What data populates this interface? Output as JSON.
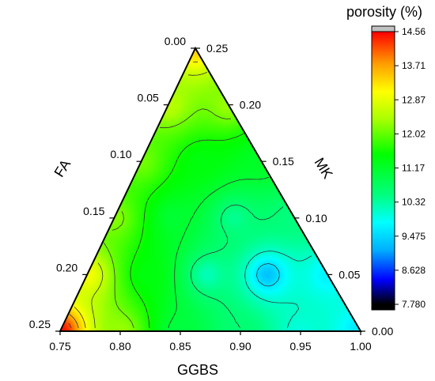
{
  "chart_data": {
    "type": "heatmap",
    "subtype": "ternary-contour",
    "colorbar": {
      "title": "porosity (%)",
      "tick_labels": [
        "14.56",
        "13.71",
        "12.87",
        "12.02",
        "11.17",
        "10.32",
        "9.475",
        "8.628",
        "7.780"
      ],
      "range": [
        7.78,
        14.56
      ],
      "colormap": [
        "#000000",
        "#0000ff",
        "#00b0ff",
        "#00ffff",
        "#00ff80",
        "#00ff00",
        "#aaff00",
        "#ffff00",
        "#ffa000",
        "#ff0000",
        "#c0c0c0"
      ]
    },
    "axes": {
      "bottom": {
        "label": "GGBS",
        "tick_labels": [
          "0.75",
          "0.80",
          "0.85",
          "0.90",
          "0.95",
          "1.00"
        ],
        "range": [
          0.75,
          1.0
        ]
      },
      "left": {
        "label": "FA",
        "tick_labels": [
          "0.00",
          "0.05",
          "0.10",
          "0.15",
          "0.20",
          "0.25"
        ],
        "range": [
          0.0,
          0.25
        ]
      },
      "right": {
        "label": "MK",
        "tick_labels": [
          "0.25",
          "0.20",
          "0.15",
          "0.10",
          "0.05",
          "0.00"
        ],
        "range": [
          0.25,
          0.0
        ]
      }
    },
    "samples": [
      {
        "GGBS": 0.75,
        "FA": 0.25,
        "MK": 0.0,
        "porosity": 14.5
      },
      {
        "GGBS": 0.8,
        "FA": 0.2,
        "MK": 0.0,
        "porosity": 12.3
      },
      {
        "GGBS": 0.85,
        "FA": 0.15,
        "MK": 0.0,
        "porosity": 11.0
      },
      {
        "GGBS": 0.9,
        "FA": 0.1,
        "MK": 0.0,
        "porosity": 10.6
      },
      {
        "GGBS": 0.95,
        "FA": 0.05,
        "MK": 0.0,
        "porosity": 10.0
      },
      {
        "GGBS": 1.0,
        "FA": 0.0,
        "MK": 0.0,
        "porosity": 9.6
      },
      {
        "GGBS": 0.75,
        "FA": 0.2,
        "MK": 0.05,
        "porosity": 13.0
      },
      {
        "GGBS": 0.8,
        "FA": 0.15,
        "MK": 0.05,
        "porosity": 11.4
      },
      {
        "GGBS": 0.85,
        "FA": 0.1,
        "MK": 0.05,
        "porosity": 10.2
      },
      {
        "GGBS": 0.9,
        "FA": 0.05,
        "MK": 0.05,
        "porosity": 9.3
      },
      {
        "GGBS": 0.95,
        "FA": 0.0,
        "MK": 0.05,
        "porosity": 9.7
      },
      {
        "GGBS": 0.75,
        "FA": 0.15,
        "MK": 0.1,
        "porosity": 12.2
      },
      {
        "GGBS": 0.8,
        "FA": 0.1,
        "MK": 0.1,
        "porosity": 11.1
      },
      {
        "GGBS": 0.85,
        "FA": 0.05,
        "MK": 0.1,
        "porosity": 10.4
      },
      {
        "GGBS": 0.9,
        "FA": 0.0,
        "MK": 0.1,
        "porosity": 10.5
      },
      {
        "GGBS": 0.75,
        "FA": 0.1,
        "MK": 0.15,
        "porosity": 12.1
      },
      {
        "GGBS": 0.8,
        "FA": 0.05,
        "MK": 0.15,
        "porosity": 11.4
      },
      {
        "GGBS": 0.85,
        "FA": 0.0,
        "MK": 0.15,
        "porosity": 11.2
      },
      {
        "GGBS": 0.75,
        "FA": 0.05,
        "MK": 0.2,
        "porosity": 12.5
      },
      {
        "GGBS": 0.8,
        "FA": 0.0,
        "MK": 0.2,
        "porosity": 12.3
      },
      {
        "GGBS": 0.75,
        "FA": 0.0,
        "MK": 0.25,
        "porosity": 13.4
      }
    ],
    "contour_levels": [
      9.6,
      10.1,
      10.6,
      11.1,
      11.6,
      12.1,
      12.6,
      13.1,
      13.6,
      14.1
    ]
  }
}
